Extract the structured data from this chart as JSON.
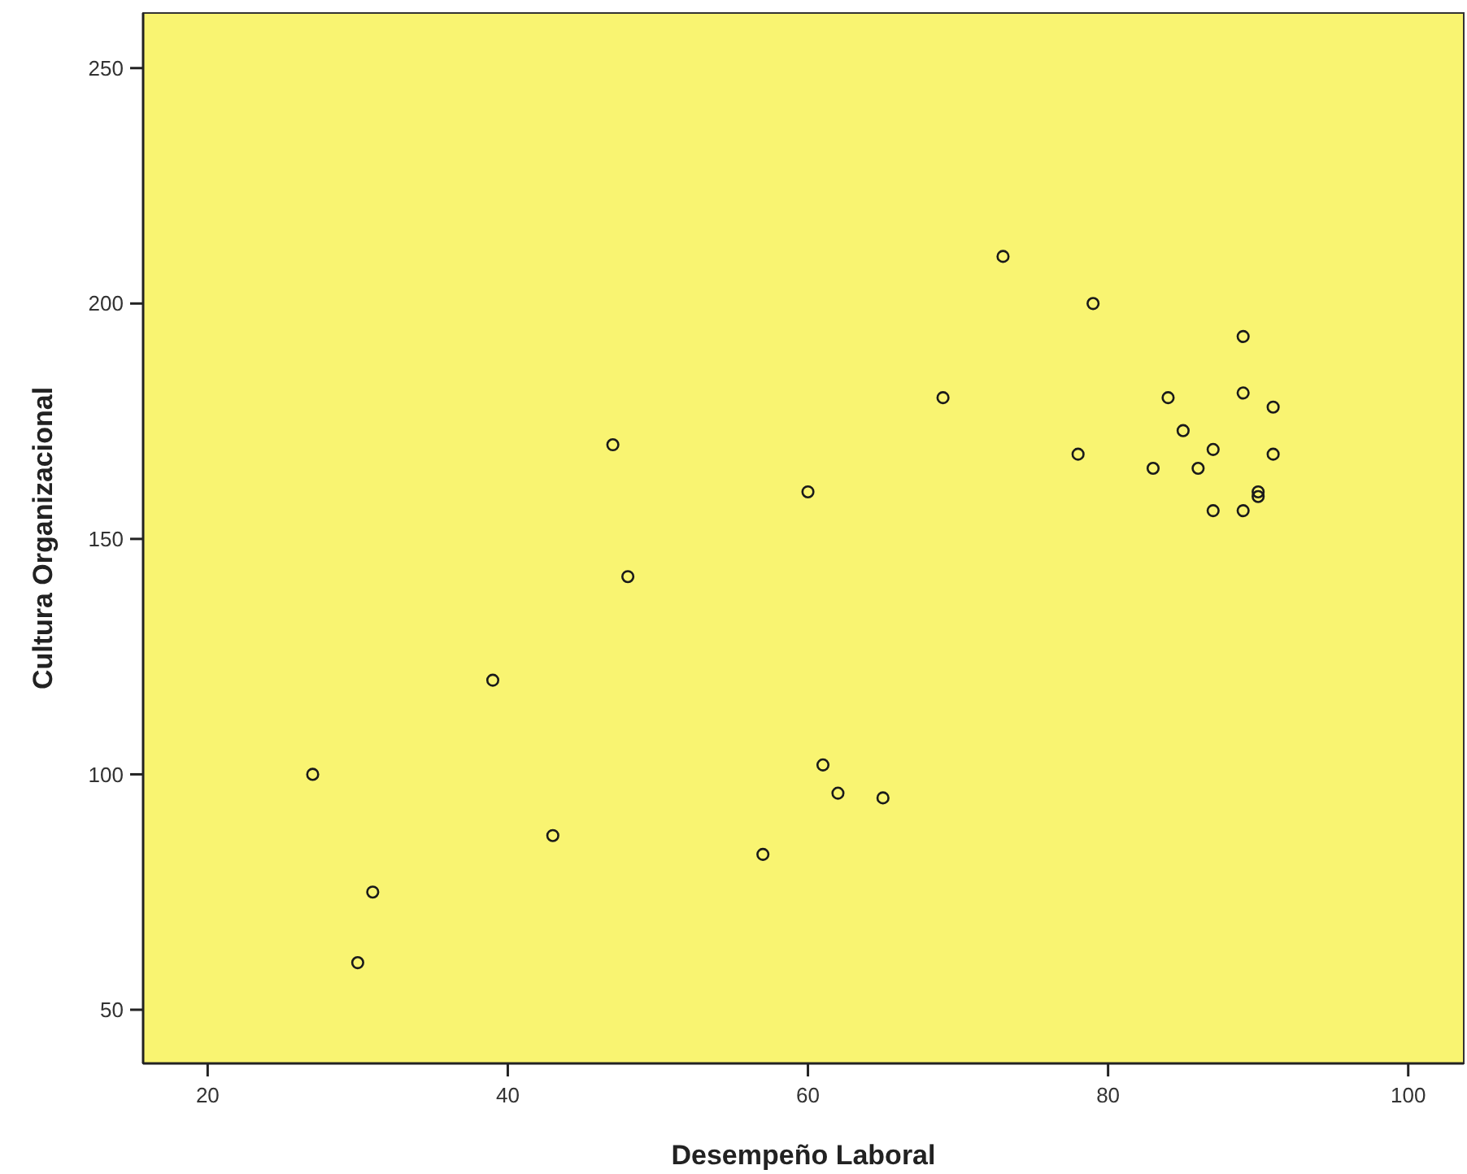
{
  "chart_data": {
    "type": "scatter",
    "xlabel": "Desempeño Laboral",
    "ylabel": "Cultura Organizacional",
    "xlim": [
      15.7,
      103.7
    ],
    "xticks": [
      20,
      40,
      60,
      80,
      100
    ],
    "ylim": [
      38.6,
      261.7
    ],
    "yticks": [
      50,
      100,
      150,
      200,
      250
    ],
    "grid": false,
    "marker": "circle",
    "series": [
      {
        "color": "#1a1a1a",
        "x": [
          27,
          31,
          30,
          39,
          43,
          47,
          48,
          57,
          60,
          61,
          62,
          65,
          69,
          73,
          78,
          79,
          83,
          84,
          85,
          86,
          87,
          87,
          89,
          89,
          89,
          90,
          90,
          91,
          91
        ],
        "values": [
          100,
          75,
          60,
          120,
          87,
          170,
          142,
          83,
          160,
          102,
          96,
          95,
          180,
          210,
          168,
          200,
          165,
          180,
          173,
          165,
          169,
          156,
          193,
          181,
          156,
          160,
          159,
          178,
          168
        ]
      }
    ]
  }
}
